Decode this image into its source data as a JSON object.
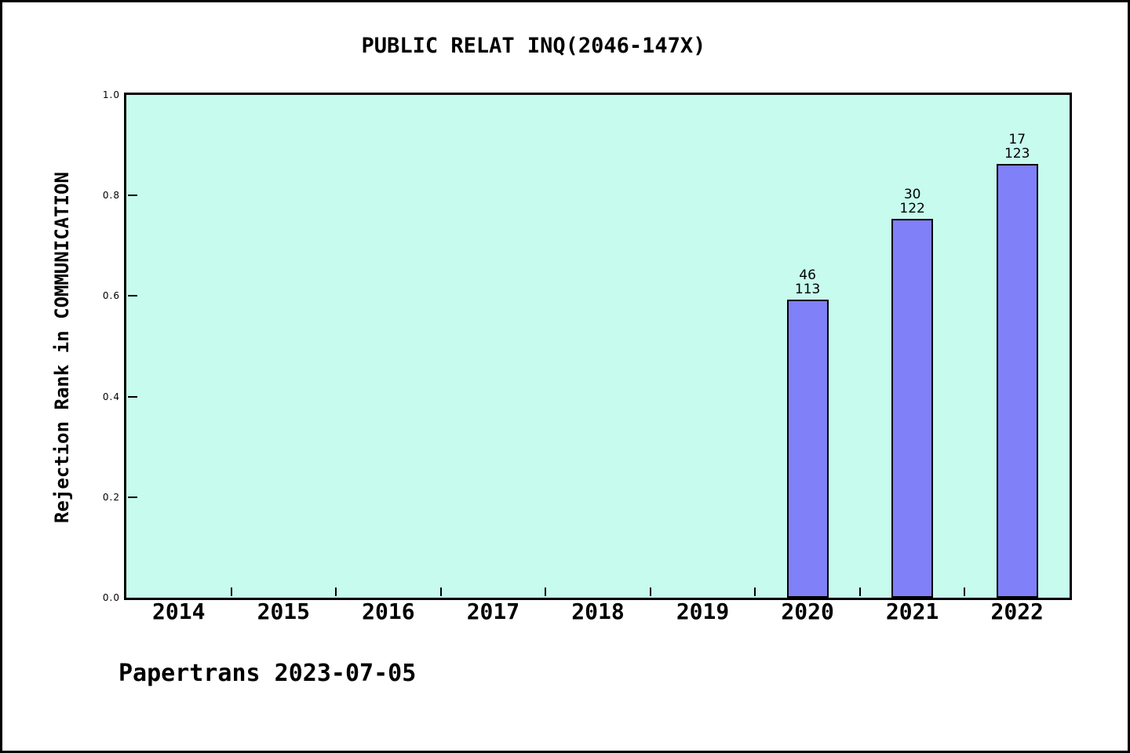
{
  "footer": "Papertrans 2023-07-05",
  "chart_data": {
    "type": "bar",
    "title": "PUBLIC RELAT INQ(2046-147X)",
    "ylabel": "Rejection Rank in COMMUNICATION",
    "xlabel": "",
    "categories": [
      "2014",
      "2015",
      "2016",
      "2017",
      "2018",
      "2019",
      "2020",
      "2021",
      "2022"
    ],
    "series": [
      {
        "name": "Rejection Rank in COMMUNICATION",
        "values": [
          null,
          null,
          null,
          null,
          null,
          null,
          0.593,
          0.754,
          0.862
        ]
      }
    ],
    "bar_labels": [
      null,
      null,
      null,
      null,
      null,
      null,
      {
        "line1": "46",
        "line2": "113"
      },
      {
        "line1": "30",
        "line2": "122"
      },
      {
        "line1": "17",
        "line2": "123"
      }
    ],
    "ylim": [
      0.0,
      1.0
    ],
    "yticks": [
      "0.0",
      "0.2",
      "0.4",
      "0.6",
      "0.8",
      "1.0"
    ],
    "grid": false,
    "legend": null,
    "colors": {
      "bar_fill": "#8080f8",
      "bar_edge": "#000000",
      "plot_background": "#c7fbee",
      "figure_background": "#ffffff",
      "axis": "#000000"
    }
  }
}
